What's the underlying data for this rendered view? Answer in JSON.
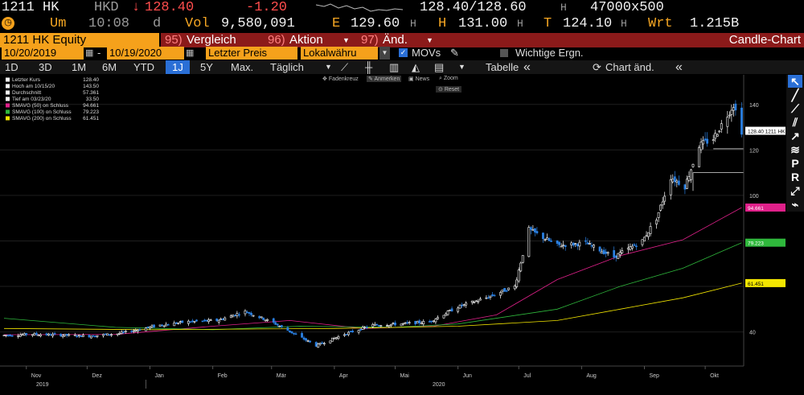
{
  "quote": {
    "ticker": "1211 HK",
    "currency": "HKD",
    "arrow": "↓",
    "last": "128.40",
    "change": "-1.20",
    "bid_ask": "128.40/128.60",
    "bid_ask_suffix": "H",
    "size": "47000x500",
    "um_label": "Um",
    "time": "10:08",
    "d_label": "d",
    "vol_label": "Vol",
    "volume": "9,580,091",
    "e_label": "E",
    "open": "129.60",
    "open_suffix": "H",
    "h_label": "H",
    "high": "131.00",
    "high_suffix": "H",
    "t_label": "T",
    "low": "124.10",
    "low_suffix": "H",
    "wrt_label": "Wrt",
    "mktcap": "1.215B"
  },
  "header": {
    "security": "1211 HK Equity",
    "menu_compare_num": "95)",
    "menu_compare": "Vergleich",
    "menu_action_num": "96)",
    "menu_action": "Aktion",
    "menu_edit_num": "97)",
    "menu_edit": "Änd.",
    "chart_type": "Candle-Chart"
  },
  "range": {
    "start": "10/20/2019",
    "end": "10/19/2020",
    "price_field": "Letzter Preis",
    "currency_field": "Lokalwähru",
    "movs_label": "MOVs",
    "events_label": "Wichtige Ergn."
  },
  "toolbar": {
    "periods": [
      "1D",
      "3D",
      "1M",
      "6M",
      "YTD",
      "1J",
      "5Y",
      "Max."
    ],
    "selected_period": "1J",
    "frequency": "Täglich",
    "table_label": "Tabelle",
    "chart_edit_label": "Chart änd."
  },
  "chart_tools": {
    "crosshair": "Fadenkreuz",
    "annotate": "Anmerken",
    "news": "News",
    "zoom": "Zoom",
    "reset": "Reset"
  },
  "right_tools": [
    "P",
    "R"
  ],
  "legend": [
    {
      "label": "Letzter Kurs",
      "value": "128.40",
      "color": "#ffffff"
    },
    {
      "label": "Hoch am 10/15/20",
      "value": "143.50",
      "color": "#ffffff"
    },
    {
      "label": "Durchschnitt",
      "value": "57.361",
      "color": "#ffffff"
    },
    {
      "label": "Tief am 03/23/20",
      "value": "33.50",
      "color": "#ffffff"
    },
    {
      "label": "SMAVG (50)  on Schluss",
      "value": "94.661",
      "color": "#e0208a"
    },
    {
      "label": "SMAVG (100)  on Schluss",
      "value": "79.223",
      "color": "#2fb83c"
    },
    {
      "label": "SMAVG (200)  on Schluss",
      "value": "61.451",
      "color": "#f3e600"
    }
  ],
  "price_labels": [
    {
      "text": "128.40  1211 HK",
      "bg": "#ffffff",
      "fg": "#000000"
    },
    {
      "text": "94.661",
      "bg": "#e0208a",
      "fg": "#ffffff"
    },
    {
      "text": "79.223",
      "bg": "#2fb83c",
      "fg": "#ffffff"
    },
    {
      "text": "61.451",
      "bg": "#f3e600",
      "fg": "#000000"
    }
  ],
  "colors": {
    "accent": "#f5a11b",
    "bar": "#8b1a1a",
    "up": "#ffffff",
    "down": "#2a7fe0"
  },
  "chart_data": {
    "type": "candlestick",
    "title": "",
    "y_ticks": [
      40,
      60,
      80,
      100,
      120,
      140
    ],
    "y_tick_labels": [
      "40",
      "",
      "",
      "100",
      "120",
      "140"
    ],
    "ylim": [
      25,
      153
    ],
    "x_months": [
      "Nov",
      "Dez",
      "Jan",
      "Feb",
      "Mär",
      "Apr",
      "Mai",
      "Jun",
      "Jul",
      "Aug",
      "Sep",
      "Okt"
    ],
    "x_years": [
      "2019",
      "2020"
    ],
    "last": 128.4,
    "high": {
      "date": "10/15/20",
      "value": 143.5
    },
    "low": {
      "date": "03/23/20",
      "value": 33.5
    },
    "average": 57.361,
    "weekly_close_approx": [
      {
        "date": "2019-10-21",
        "close": 38.5
      },
      {
        "date": "2019-11-04",
        "close": 39.0
      },
      {
        "date": "2019-11-18",
        "close": 38.6
      },
      {
        "date": "2019-12-02",
        "close": 38.2
      },
      {
        "date": "2019-12-16",
        "close": 39.2
      },
      {
        "date": "2020-01-06",
        "close": 43.0
      },
      {
        "date": "2020-01-20",
        "close": 44.5
      },
      {
        "date": "2020-02-03",
        "close": 45.0
      },
      {
        "date": "2020-02-17",
        "close": 49.0
      },
      {
        "date": "2020-03-02",
        "close": 44.0
      },
      {
        "date": "2020-03-23",
        "close": 34.0
      },
      {
        "date": "2020-04-06",
        "close": 39.0
      },
      {
        "date": "2020-04-20",
        "close": 43.0
      },
      {
        "date": "2020-05-04",
        "close": 43.5
      },
      {
        "date": "2020-05-18",
        "close": 44.5
      },
      {
        "date": "2020-06-01",
        "close": 51.0
      },
      {
        "date": "2020-06-15",
        "close": 55.0
      },
      {
        "date": "2020-06-29",
        "close": 60.0
      },
      {
        "date": "2020-07-06",
        "close": 85.0
      },
      {
        "date": "2020-07-20",
        "close": 78.0
      },
      {
        "date": "2020-08-03",
        "close": 79.0
      },
      {
        "date": "2020-08-17",
        "close": 73.0
      },
      {
        "date": "2020-08-31",
        "close": 80.0
      },
      {
        "date": "2020-09-07",
        "close": 90.0
      },
      {
        "date": "2020-09-14",
        "close": 108.0
      },
      {
        "date": "2020-09-21",
        "close": 104.0
      },
      {
        "date": "2020-09-28",
        "close": 122.0
      },
      {
        "date": "2020-10-05",
        "close": 125.0
      },
      {
        "date": "2020-10-15",
        "close": 140.0
      },
      {
        "date": "2020-10-19",
        "close": 128.4
      }
    ],
    "series": [
      {
        "name": "SMAVG (50)  on Schluss",
        "last": 94.661
      },
      {
        "name": "SMAVG (100)  on Schluss",
        "last": 79.223
      },
      {
        "name": "SMAVG (200)  on Schluss",
        "last": 61.451
      }
    ]
  }
}
